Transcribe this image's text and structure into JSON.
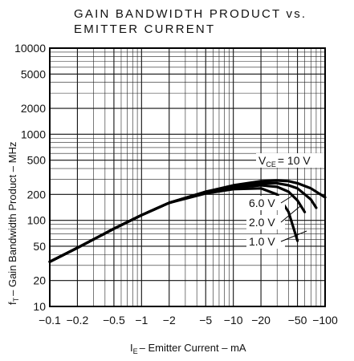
{
  "chart_data": {
    "type": "line",
    "title_line1": "GAIN BANDWIDTH PRODUCT vs.",
    "title_line2": "EMITTER CURRENT",
    "xlabel": "I",
    "xlabel_sub": "E",
    "xlabel_rest": "– Emitter  Current – mA",
    "ylabel": "f",
    "ylabel_sub": "T",
    "ylabel_rest": "– Gain  Bandwidth  Product  – MHz",
    "x_scale": "log",
    "y_scale": "log",
    "xlim": [
      -0.1,
      -100
    ],
    "ylim": [
      10,
      10000
    ],
    "grid": true,
    "x_ticks": [
      {
        "value": -0.1,
        "label": "−0.1"
      },
      {
        "value": -0.2,
        "label": "−0.2"
      },
      {
        "value": -0.5,
        "label": "−0.5"
      },
      {
        "value": -1,
        "label": "−1"
      },
      {
        "value": -2,
        "label": "−2"
      },
      {
        "value": -5,
        "label": "−5"
      },
      {
        "value": -10,
        "label": "−10"
      },
      {
        "value": -20,
        "label": "−20"
      },
      {
        "value": -50,
        "label": "−50"
      },
      {
        "value": -100,
        "label": "−100"
      }
    ],
    "y_ticks": [
      {
        "value": 10,
        "label": "10"
      },
      {
        "value": 20,
        "label": "20"
      },
      {
        "value": 50,
        "label": "50"
      },
      {
        "value": 100,
        "label": "100"
      },
      {
        "value": 200,
        "label": "200"
      },
      {
        "value": 500,
        "label": "500"
      },
      {
        "value": 1000,
        "label": "1000"
      },
      {
        "value": 2000,
        "label": "2000"
      },
      {
        "value": 5000,
        "label": "5000"
      },
      {
        "value": 10000,
        "label": "10000"
      }
    ],
    "series": [
      {
        "name": "V_CE = 10 V",
        "label": "V",
        "label_sub": "CE",
        "label_rest": "=  10  V",
        "x": [
          -0.1,
          -0.2,
          -0.5,
          -1,
          -2,
          -5,
          -10,
          -20,
          -30,
          -40,
          -50,
          -70,
          -100
        ],
        "y": [
          33,
          48,
          80,
          115,
          160,
          215,
          255,
          285,
          290,
          285,
          270,
          235,
          185
        ]
      },
      {
        "name": "6.0 V",
        "label": "6.0  V",
        "x": [
          -0.1,
          -0.2,
          -0.5,
          -1,
          -2,
          -5,
          -10,
          -20,
          -30,
          -40,
          -50,
          -70,
          -80
        ],
        "y": [
          33,
          48,
          80,
          115,
          160,
          215,
          250,
          270,
          270,
          255,
          235,
          175,
          140
        ]
      },
      {
        "name": "2.0 V",
        "label": "2.0  V",
        "x": [
          -0.1,
          -0.2,
          -0.5,
          -1,
          -2,
          -5,
          -10,
          -20,
          -30,
          -40,
          -50,
          -60
        ],
        "y": [
          33,
          48,
          80,
          115,
          160,
          210,
          240,
          255,
          245,
          215,
          170,
          125
        ]
      },
      {
        "name": "1.0 V",
        "label": "1.0  V",
        "x": [
          -0.1,
          -0.2,
          -0.5,
          -1,
          -2,
          -5,
          -10,
          -20,
          -30,
          -40,
          -50
        ],
        "y": [
          33,
          48,
          80,
          115,
          160,
          205,
          230,
          235,
          200,
          125,
          58
        ]
      }
    ]
  }
}
